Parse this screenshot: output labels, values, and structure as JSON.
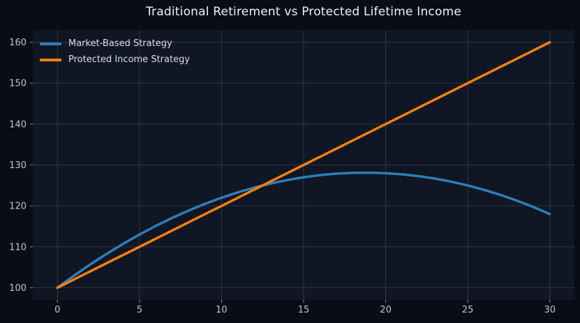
{
  "title": "Traditional Retirement vs Protected Lifetime Income",
  "colors": {
    "figure_bg": "#0a0d15",
    "axes_bg": "#101624",
    "grid": "#303644",
    "tick_label": "#c2c6cb",
    "title_text": "#f0f1f3",
    "legend_text": "#dcdee2",
    "series_blue": "#2e7eb9",
    "series_orange": "#ff7f0e"
  },
  "chart_data": {
    "type": "line",
    "title": "Traditional Retirement vs Protected Lifetime Income",
    "xlabel": "",
    "ylabel": "",
    "x": [
      0,
      1,
      2,
      3,
      4,
      5,
      6,
      7,
      8,
      9,
      10,
      11,
      12,
      13,
      14,
      15,
      16,
      17,
      18,
      19,
      20,
      21,
      22,
      23,
      24,
      25,
      26,
      27,
      28,
      29,
      30
    ],
    "series": [
      {
        "name": "Market-Based Strategy",
        "color_key": "series_blue",
        "values": [
          100,
          102.92,
          105.68,
          108.28,
          110.72,
          113,
          115.12,
          117.08,
          118.88,
          120.52,
          122,
          123.32,
          124.48,
          125.48,
          126.32,
          127,
          127.52,
          127.88,
          128.08,
          128.12,
          128,
          127.72,
          127.28,
          126.68,
          125.92,
          125,
          123.92,
          122.68,
          121.28,
          119.72,
          118
        ]
      },
      {
        "name": "Protected Income Strategy",
        "color_key": "series_orange",
        "values": [
          100,
          102,
          104,
          106,
          108,
          110,
          112,
          114,
          116,
          118,
          120,
          122,
          124,
          126,
          128,
          130,
          132,
          134,
          136,
          138,
          140,
          142,
          144,
          146,
          148,
          150,
          152,
          154,
          156,
          158,
          160
        ]
      }
    ],
    "x_ticks": [
      0,
      5,
      10,
      15,
      20,
      25,
      30
    ],
    "y_ticks": [
      100,
      110,
      120,
      130,
      140,
      150,
      160
    ],
    "xlim": [
      -1.5,
      31.5
    ],
    "ylim": [
      97,
      163
    ],
    "grid": true,
    "legend_position": "upper-left"
  }
}
